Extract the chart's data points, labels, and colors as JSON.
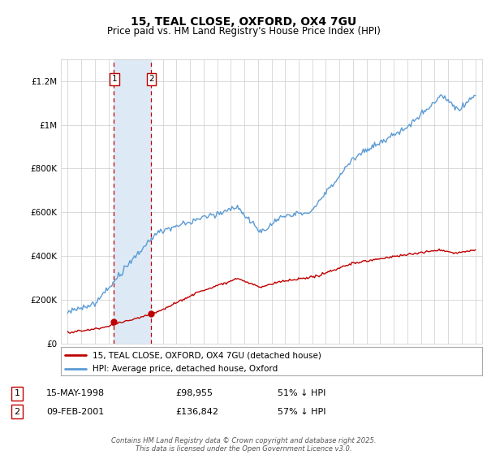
{
  "title": "15, TEAL CLOSE, OXFORD, OX4 7GU",
  "subtitle": "Price paid vs. HM Land Registry's House Price Index (HPI)",
  "footer": "Contains HM Land Registry data © Crown copyright and database right 2025.\nThis data is licensed under the Open Government Licence v3.0.",
  "legend_entry1": "15, TEAL CLOSE, OXFORD, OX4 7GU (detached house)",
  "legend_entry2": "HPI: Average price, detached house, Oxford",
  "transaction1_label": "1",
  "transaction1_date": "15-MAY-1998",
  "transaction1_price": "£98,955",
  "transaction1_hpi": "51% ↓ HPI",
  "transaction1_year": 1998.37,
  "transaction1_value": 98955,
  "transaction2_label": "2",
  "transaction2_date": "09-FEB-2001",
  "transaction2_price": "£136,842",
  "transaction2_hpi": "57% ↓ HPI",
  "transaction2_year": 2001.11,
  "transaction2_value": 136842,
  "hpi_color": "#5b9bd5",
  "price_color": "#c00000",
  "marker_color": "#c00000",
  "shade_color": "#ddeaf5",
  "vline_color": "#c00000",
  "background_color": "#ffffff",
  "grid_color": "#cccccc",
  "ylim": [
    0,
    1300000
  ],
  "xlim": [
    1994.5,
    2025.5
  ],
  "yticks": [
    0,
    200000,
    400000,
    600000,
    800000,
    1000000,
    1200000
  ],
  "ytick_labels": [
    "£0",
    "£200K",
    "£400K",
    "£600K",
    "£800K",
    "£1M",
    "£1.2M"
  ],
  "xticks": [
    1995,
    1996,
    1997,
    1998,
    1999,
    2000,
    2001,
    2002,
    2003,
    2004,
    2005,
    2006,
    2007,
    2008,
    2009,
    2010,
    2011,
    2012,
    2013,
    2014,
    2015,
    2016,
    2017,
    2018,
    2019,
    2020,
    2021,
    2022,
    2023,
    2024,
    2025
  ]
}
